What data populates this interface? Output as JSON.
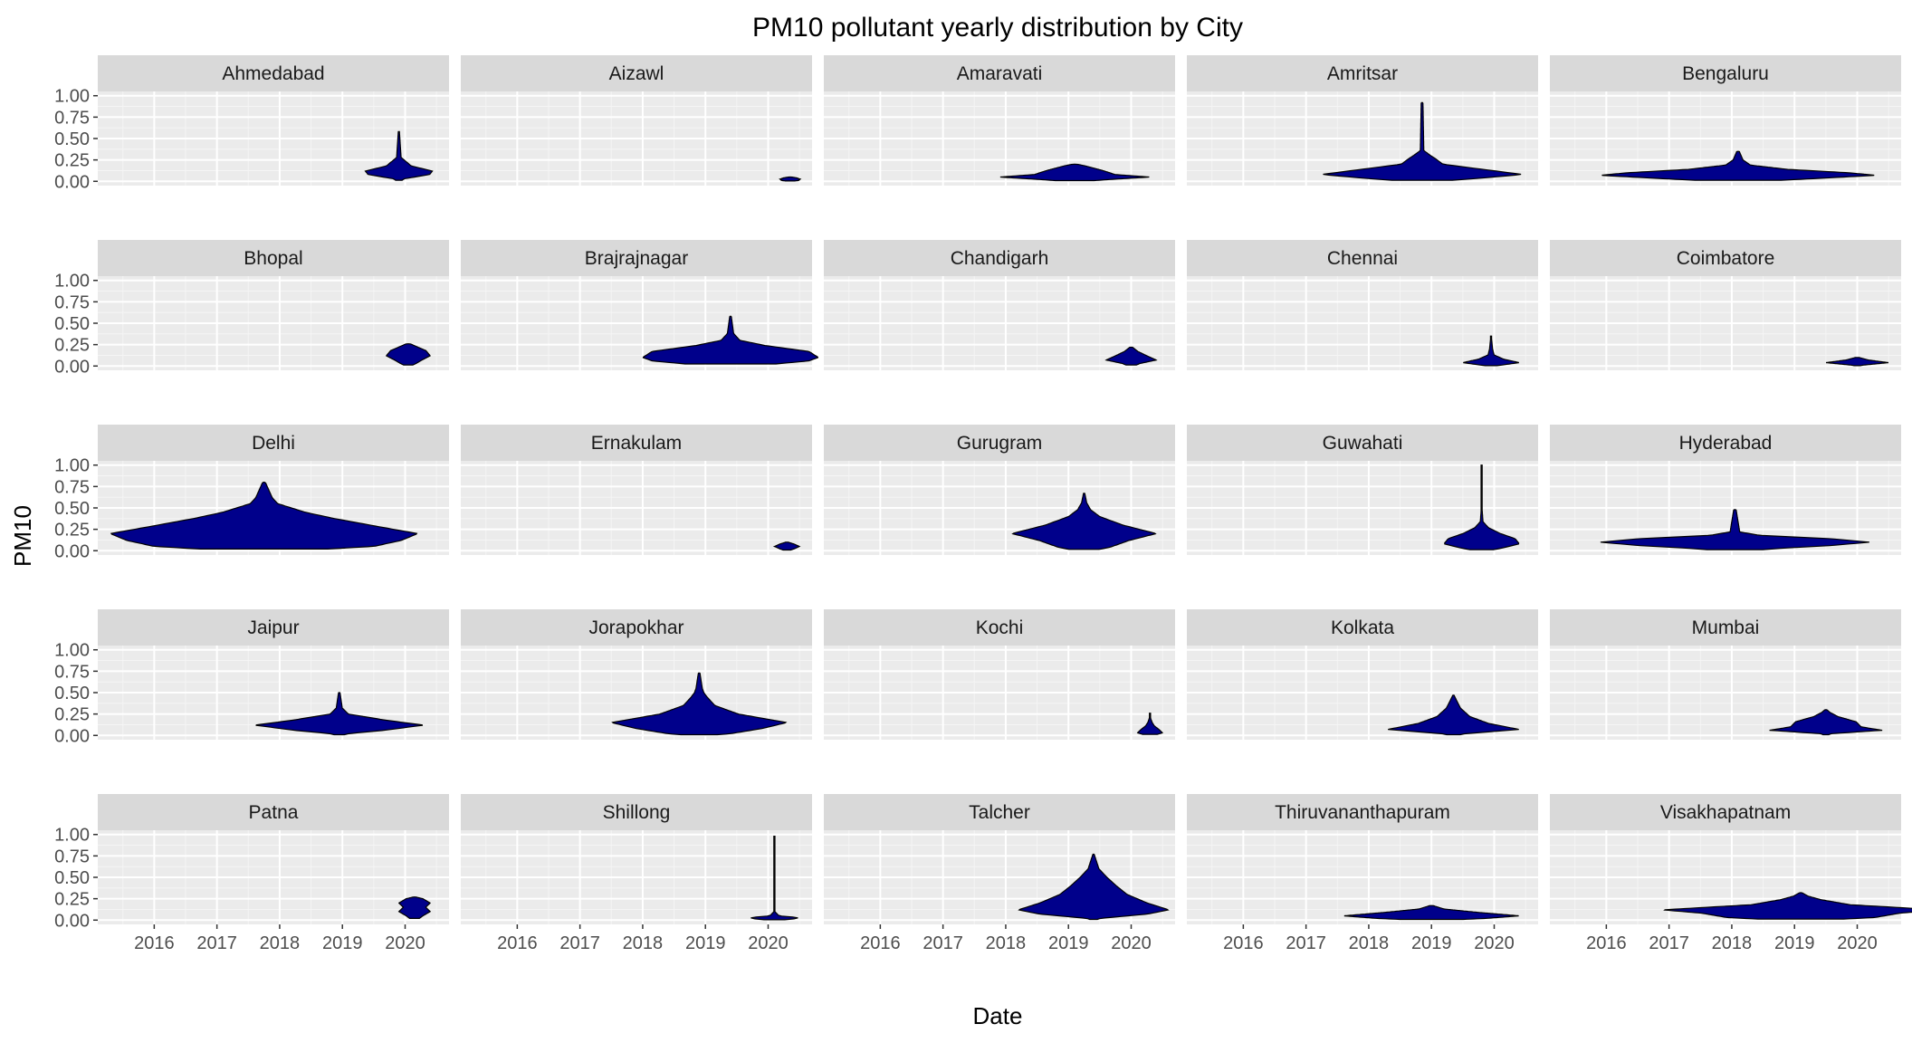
{
  "chart_data": {
    "type": "violin",
    "title": "PM10 pollutant yearly distribution by City",
    "xlabel": "Date",
    "ylabel": "PM10",
    "x_ticks": [
      "2016",
      "2017",
      "2018",
      "2019",
      "2020"
    ],
    "y_ticks": [
      "0.00",
      "0.25",
      "0.50",
      "0.75",
      "1.00"
    ],
    "xlim": [
      2015.1,
      2020.7
    ],
    "ylim": [
      -0.05,
      1.05
    ],
    "grid": true,
    "fill_color": "#00008B",
    "facets": [
      {
        "name": "Ahmedabad",
        "start": 2019.4,
        "end": 2020.4,
        "max": 0.58,
        "profile": [
          [
            0.03,
            0.1
          ],
          [
            0.08,
            0.55
          ],
          [
            0.12,
            0.6
          ],
          [
            0.18,
            0.22
          ],
          [
            0.28,
            0.04
          ],
          [
            0.58,
            0.01
          ]
        ]
      },
      {
        "name": "Aizawl",
        "start": 2020.2,
        "end": 2020.5,
        "max": 0.05,
        "profile": [
          [
            0.01,
            0.5
          ],
          [
            0.025,
            0.6
          ],
          [
            0.04,
            0.4
          ],
          [
            0.05,
            0.1
          ]
        ]
      },
      {
        "name": "Amaravati",
        "start": 2017.9,
        "end": 2020.3,
        "max": 0.2,
        "profile": [
          [
            0.02,
            0.25
          ],
          [
            0.05,
            0.56
          ],
          [
            0.08,
            0.3
          ],
          [
            0.13,
            0.2
          ],
          [
            0.18,
            0.08
          ],
          [
            0.2,
            0.02
          ]
        ]
      },
      {
        "name": "Amritsar",
        "start": 2017.3,
        "end": 2020.4,
        "max": 0.92,
        "profile": [
          [
            0.03,
            0.3
          ],
          [
            0.08,
            0.58
          ],
          [
            0.14,
            0.35
          ],
          [
            0.2,
            0.12
          ],
          [
            0.26,
            0.08
          ],
          [
            0.3,
            0.05
          ],
          [
            0.36,
            0.01
          ],
          [
            0.92,
            0.005
          ]
        ]
      },
      {
        "name": "Bengaluru",
        "start": 2015.9,
        "end": 2020.3,
        "max": 0.35,
        "profile": [
          [
            0.03,
            0.3
          ],
          [
            0.07,
            0.56
          ],
          [
            0.1,
            0.45
          ],
          [
            0.14,
            0.2
          ],
          [
            0.19,
            0.05
          ],
          [
            0.25,
            0.02
          ],
          [
            0.35,
            0.005
          ]
        ]
      },
      {
        "name": "Bhopal",
        "start": 2019.7,
        "end": 2020.4,
        "max": 0.26,
        "profile": [
          [
            0.03,
            0.2
          ],
          [
            0.07,
            0.35
          ],
          [
            0.12,
            0.56
          ],
          [
            0.18,
            0.45
          ],
          [
            0.23,
            0.2
          ],
          [
            0.26,
            0.05
          ]
        ]
      },
      {
        "name": "Brajrajnagar",
        "start": 2018.0,
        "end": 2020.8,
        "max": 0.58,
        "profile": [
          [
            0.06,
            0.5
          ],
          [
            0.1,
            0.56
          ],
          [
            0.17,
            0.5
          ],
          [
            0.24,
            0.22
          ],
          [
            0.3,
            0.06
          ],
          [
            0.38,
            0.02
          ],
          [
            0.58,
            0.005
          ]
        ]
      },
      {
        "name": "Chandigarh",
        "start": 2019.6,
        "end": 2020.4,
        "max": 0.22,
        "profile": [
          [
            0.03,
            0.2
          ],
          [
            0.07,
            0.56
          ],
          [
            0.12,
            0.35
          ],
          [
            0.17,
            0.15
          ],
          [
            0.22,
            0.03
          ]
        ]
      },
      {
        "name": "Chennai",
        "start": 2019.5,
        "end": 2020.4,
        "max": 0.35,
        "profile": [
          [
            0.01,
            0.2
          ],
          [
            0.04,
            0.56
          ],
          [
            0.08,
            0.25
          ],
          [
            0.13,
            0.06
          ],
          [
            0.2,
            0.03
          ],
          [
            0.35,
            0.005
          ]
        ]
      },
      {
        "name": "Coimbatore",
        "start": 2019.5,
        "end": 2020.5,
        "max": 0.1,
        "profile": [
          [
            0.01,
            0.1
          ],
          [
            0.04,
            0.56
          ],
          [
            0.07,
            0.2
          ],
          [
            0.1,
            0.03
          ]
        ]
      },
      {
        "name": "Delhi",
        "start": 2015.3,
        "end": 2020.2,
        "max": 0.8,
        "profile": [
          [
            0.05,
            0.4
          ],
          [
            0.12,
            0.5
          ],
          [
            0.2,
            0.56
          ],
          [
            0.28,
            0.42
          ],
          [
            0.38,
            0.25
          ],
          [
            0.45,
            0.15
          ],
          [
            0.55,
            0.05
          ],
          [
            0.62,
            0.03
          ],
          [
            0.8,
            0.005
          ]
        ]
      },
      {
        "name": "Ernakulam",
        "start": 2020.1,
        "end": 2020.5,
        "max": 0.1,
        "profile": [
          [
            0.02,
            0.3
          ],
          [
            0.05,
            0.56
          ],
          [
            0.08,
            0.3
          ],
          [
            0.1,
            0.05
          ]
        ]
      },
      {
        "name": "Gurugram",
        "start": 2018.1,
        "end": 2020.4,
        "max": 0.67,
        "profile": [
          [
            0.04,
            0.2
          ],
          [
            0.12,
            0.35
          ],
          [
            0.2,
            0.56
          ],
          [
            0.3,
            0.3
          ],
          [
            0.4,
            0.12
          ],
          [
            0.48,
            0.05
          ],
          [
            0.56,
            0.02
          ],
          [
            0.67,
            0.005
          ]
        ]
      },
      {
        "name": "Guwahati",
        "start": 2019.2,
        "end": 2020.4,
        "max": 1.0,
        "profile": [
          [
            0.03,
            0.3
          ],
          [
            0.08,
            0.56
          ],
          [
            0.14,
            0.5
          ],
          [
            0.2,
            0.28
          ],
          [
            0.27,
            0.1
          ],
          [
            0.34,
            0.02
          ],
          [
            0.5,
            0.005
          ],
          [
            1.0,
            0.004
          ]
        ]
      },
      {
        "name": "Hyderabad",
        "start": 2015.9,
        "end": 2020.2,
        "max": 0.48,
        "profile": [
          [
            0.03,
            0.2
          ],
          [
            0.06,
            0.4
          ],
          [
            0.1,
            0.56
          ],
          [
            0.14,
            0.4
          ],
          [
            0.18,
            0.1
          ],
          [
            0.22,
            0.02
          ],
          [
            0.48,
            0.005
          ]
        ]
      },
      {
        "name": "Jaipur",
        "start": 2017.6,
        "end": 2020.3,
        "max": 0.5,
        "profile": [
          [
            0.02,
            0.06
          ],
          [
            0.06,
            0.3
          ],
          [
            0.12,
            0.56
          ],
          [
            0.18,
            0.3
          ],
          [
            0.25,
            0.06
          ],
          [
            0.32,
            0.02
          ],
          [
            0.5,
            0.005
          ]
        ]
      },
      {
        "name": "Jorapokhar",
        "start": 2017.5,
        "end": 2020.3,
        "max": 0.73,
        "profile": [
          [
            0.02,
            0.2
          ],
          [
            0.08,
            0.4
          ],
          [
            0.15,
            0.56
          ],
          [
            0.25,
            0.25
          ],
          [
            0.35,
            0.1
          ],
          [
            0.45,
            0.05
          ],
          [
            0.5,
            0.03
          ],
          [
            0.55,
            0.02
          ],
          [
            0.73,
            0.005
          ]
        ]
      },
      {
        "name": "Kochi",
        "start": 2020.1,
        "end": 2020.5,
        "max": 0.26,
        "profile": [
          [
            0.03,
            0.56
          ],
          [
            0.07,
            0.4
          ],
          [
            0.11,
            0.2
          ],
          [
            0.15,
            0.1
          ],
          [
            0.2,
            0.03
          ],
          [
            0.26,
            0.005
          ]
        ]
      },
      {
        "name": "Kolkata",
        "start": 2018.3,
        "end": 2020.4,
        "max": 0.47,
        "profile": [
          [
            0.02,
            0.1
          ],
          [
            0.07,
            0.56
          ],
          [
            0.14,
            0.3
          ],
          [
            0.22,
            0.14
          ],
          [
            0.32,
            0.06
          ],
          [
            0.4,
            0.03
          ],
          [
            0.47,
            0.005
          ]
        ]
      },
      {
        "name": "Mumbai",
        "start": 2018.6,
        "end": 2020.4,
        "max": 0.3,
        "profile": [
          [
            0.02,
            0.05
          ],
          [
            0.06,
            0.56
          ],
          [
            0.1,
            0.35
          ],
          [
            0.16,
            0.3
          ],
          [
            0.22,
            0.12
          ],
          [
            0.27,
            0.04
          ],
          [
            0.3,
            0.01
          ]
        ]
      },
      {
        "name": "Patna",
        "start": 2019.9,
        "end": 2020.4,
        "max": 0.27,
        "profile": [
          [
            0.05,
            0.3
          ],
          [
            0.1,
            0.56
          ],
          [
            0.15,
            0.4
          ],
          [
            0.2,
            0.56
          ],
          [
            0.25,
            0.3
          ],
          [
            0.27,
            0.05
          ]
        ]
      },
      {
        "name": "Shillong",
        "start": 2019.7,
        "end": 2020.5,
        "max": 0.98,
        "profile": [
          [
            0.01,
            0.4
          ],
          [
            0.03,
            0.56
          ],
          [
            0.05,
            0.1
          ],
          [
            0.1,
            0.01
          ],
          [
            0.4,
            0.005
          ],
          [
            0.98,
            0.004
          ]
        ]
      },
      {
        "name": "Talcher",
        "start": 2018.2,
        "end": 2020.6,
        "max": 0.77,
        "profile": [
          [
            0.02,
            0.05
          ],
          [
            0.07,
            0.4
          ],
          [
            0.12,
            0.56
          ],
          [
            0.2,
            0.4
          ],
          [
            0.3,
            0.25
          ],
          [
            0.4,
            0.17
          ],
          [
            0.5,
            0.1
          ],
          [
            0.6,
            0.04
          ],
          [
            0.77,
            0.005
          ]
        ]
      },
      {
        "name": "Thiruvananthapuram",
        "start": 2017.6,
        "end": 2020.4,
        "max": 0.17,
        "profile": [
          [
            0.02,
            0.35
          ],
          [
            0.05,
            0.56
          ],
          [
            0.09,
            0.3
          ],
          [
            0.13,
            0.08
          ],
          [
            0.17,
            0.01
          ]
        ]
      },
      {
        "name": "Visakhapatnam",
        "start": 2016.9,
        "end": 2021.3,
        "max": 0.32,
        "profile": [
          [
            0.03,
            0.3
          ],
          [
            0.08,
            0.4
          ],
          [
            0.12,
            0.56
          ],
          [
            0.18,
            0.2
          ],
          [
            0.24,
            0.08
          ],
          [
            0.28,
            0.03
          ],
          [
            0.32,
            0.005
          ]
        ]
      }
    ]
  }
}
